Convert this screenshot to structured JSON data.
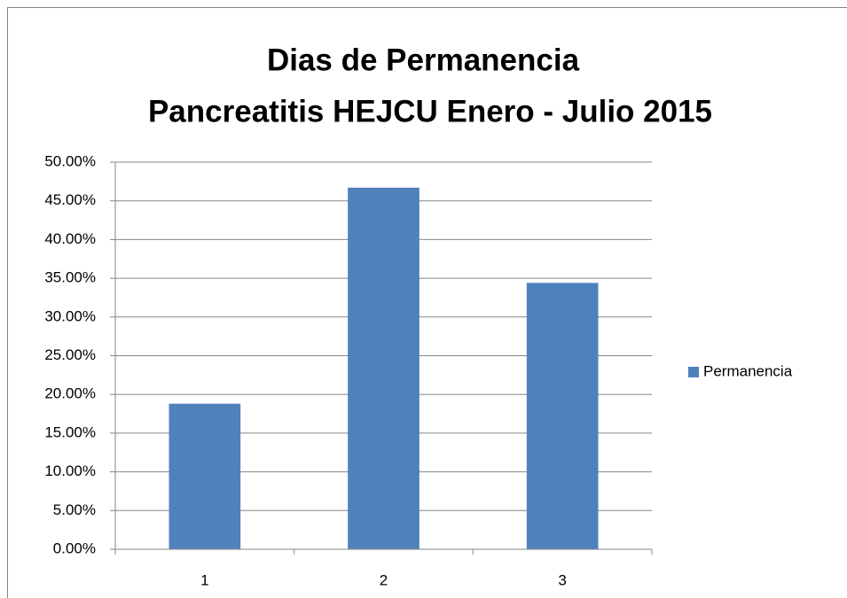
{
  "chart_data": {
    "type": "bar",
    "title": [
      "Dias de Permanencia",
      "Pancreatitis HEJCU Enero - Julio 2015"
    ],
    "categories": [
      "1",
      "2",
      "3"
    ],
    "series": [
      {
        "name": "Permanencia",
        "color": "#4f81bd",
        "values": [
          18.8,
          46.7,
          34.4
        ]
      }
    ],
    "ylim": [
      0,
      50
    ],
    "yticks": [
      {
        "value": 0,
        "label": "0.00%"
      },
      {
        "value": 5,
        "label": "5.00%"
      },
      {
        "value": 10,
        "label": "10.00%"
      },
      {
        "value": 15,
        "label": "15.00%"
      },
      {
        "value": 20,
        "label": "20.00%"
      },
      {
        "value": 25,
        "label": "25.00%"
      },
      {
        "value": 30,
        "label": "30.00%"
      },
      {
        "value": 35,
        "label": "35.00%"
      },
      {
        "value": 40,
        "label": "40.00%"
      },
      {
        "value": 45,
        "label": "45.00%"
      },
      {
        "value": 50,
        "label": "50.00%"
      }
    ],
    "grid": true,
    "legend": "right"
  }
}
